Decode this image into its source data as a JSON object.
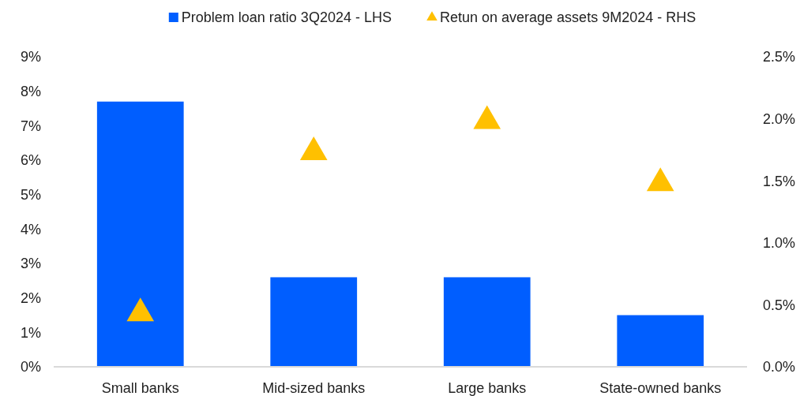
{
  "chart_data": {
    "type": "bar",
    "categories": [
      "Small banks",
      "Mid-sized banks",
      "Large banks",
      "State-owned banks"
    ],
    "series": [
      {
        "name": "Problem loan ratio 3Q2024 - LHS",
        "color": "#005eff",
        "values": [
          7.7,
          2.6,
          2.6,
          1.5
        ]
      },
      {
        "name": "Retun on average assets 9M2024 - RHS",
        "type": "scatter",
        "axis": "y2",
        "marker": "triangle",
        "color": "#ffc000",
        "values": [
          0.45,
          1.75,
          2.0,
          1.5
        ]
      }
    ],
    "ylim": [
      0,
      9
    ],
    "yticks": [
      {
        "value": 0,
        "label": "0%"
      },
      {
        "value": 1,
        "label": "1%"
      },
      {
        "value": 2,
        "label": "2%"
      },
      {
        "value": 3,
        "label": "3%"
      },
      {
        "value": 4,
        "label": "4%"
      },
      {
        "value": 5,
        "label": "5%"
      },
      {
        "value": 6,
        "label": "6%"
      },
      {
        "value": 7,
        "label": "7%"
      },
      {
        "value": 8,
        "label": "8%"
      },
      {
        "value": 9,
        "label": "9%"
      }
    ],
    "y2lim": [
      0,
      2.5
    ],
    "y2ticks": [
      {
        "value": 0,
        "label": "0.0%"
      },
      {
        "value": 0.5,
        "label": "0.5%"
      },
      {
        "value": 1,
        "label": "1.0%"
      },
      {
        "value": 1.5,
        "label": "1.5%"
      },
      {
        "value": 2,
        "label": "2.0%"
      },
      {
        "value": 2.5,
        "label": "2.5%"
      }
    ],
    "legend": "top",
    "grid": false
  }
}
